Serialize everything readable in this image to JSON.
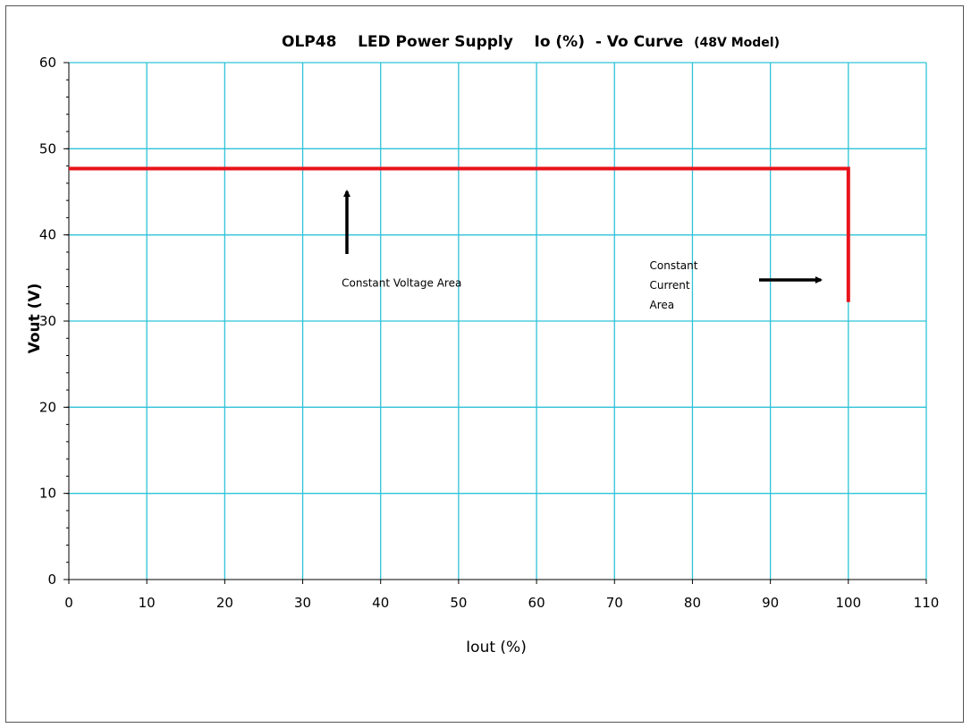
{
  "chart_data": {
    "type": "line",
    "title": "OLP48    LED Power Supply    Io (%)  - Vo Curve",
    "title_suffix": "(48V Model)",
    "xlabel": "Iout (%)",
    "ylabel": "Vout (V)",
    "xlim": [
      0,
      110
    ],
    "ylim": [
      0,
      60
    ],
    "xticks": [
      0,
      10,
      20,
      30,
      40,
      50,
      60,
      70,
      80,
      90,
      100,
      110
    ],
    "yticks": [
      0,
      10,
      20,
      30,
      40,
      50,
      60
    ],
    "grid": true,
    "series": [
      {
        "color": "#e8131a",
        "points": [
          [
            0,
            47.7
          ],
          [
            100,
            47.7
          ],
          [
            100,
            32.2
          ]
        ]
      }
    ],
    "annotations": [
      {
        "lines": [
          "Constant Voltage Area"
        ],
        "x": 35,
        "y": 34
      },
      {
        "lines": [
          "Constant",
          "Current",
          "Area"
        ],
        "x": 74.5,
        "y": 36
      }
    ]
  },
  "colors": {
    "grid": "#2ec3d8",
    "series": "#e8131a",
    "arrow": "#000000"
  }
}
